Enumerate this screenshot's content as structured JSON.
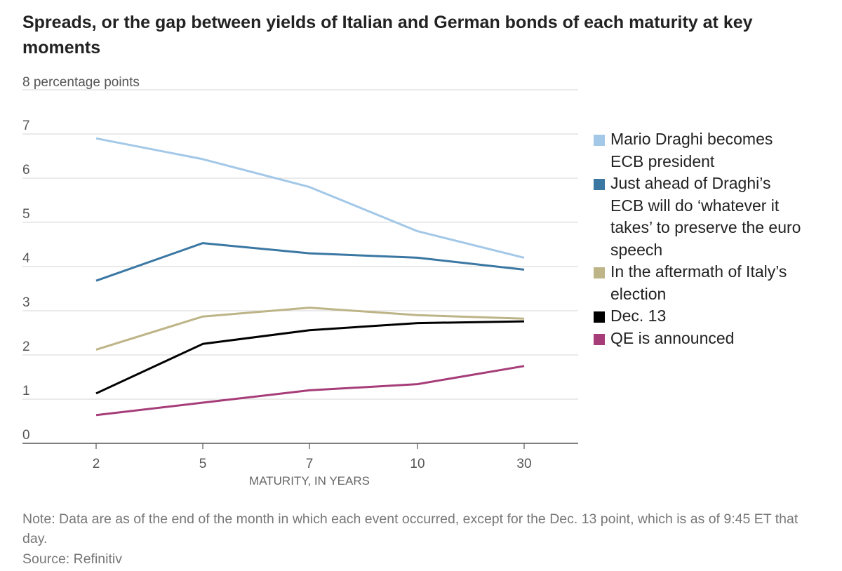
{
  "chart_data": {
    "type": "line",
    "title": "Spreads, or the gap between yields of Italian and German bonds of each maturity at key moments",
    "ylabel": "8 percentage points",
    "xlabel": "MATURITY, IN YEARS",
    "categories": [
      "2",
      "5",
      "7",
      "10",
      "30"
    ],
    "yticks": [
      0,
      1,
      2,
      3,
      4,
      5,
      6,
      7
    ],
    "ylim": [
      0,
      8
    ],
    "grid": true,
    "legend": "right",
    "series": [
      {
        "name": "Mario Draghi becomes ECB president",
        "color": "#a3c8e8",
        "values": [
          6.9,
          6.43,
          5.8,
          4.8,
          4.2
        ]
      },
      {
        "name": "Just ahead of Draghi’s ECB will do ‘whatever it takes’ to preserve the euro speech",
        "color": "#3a77a3",
        "values": [
          3.68,
          4.53,
          4.3,
          4.2,
          3.93
        ]
      },
      {
        "name": "In the aftermath of Italy’s election",
        "color": "#bdb487",
        "values": [
          2.12,
          2.87,
          3.07,
          2.9,
          2.82
        ]
      },
      {
        "name": "Dec. 13",
        "color": "#000000",
        "values": [
          1.13,
          2.25,
          2.56,
          2.72,
          2.76
        ]
      },
      {
        "name": "QE is announced",
        "color": "#a63d79",
        "values": [
          0.64,
          0.92,
          1.2,
          1.34,
          1.75
        ]
      }
    ]
  },
  "footer": {
    "note": "Note: Data are as of the end of the month in which each event occurred, except for the Dec. 13 point, which is as of 9:45 ET that day.",
    "source": "Source: Refinitiv"
  }
}
